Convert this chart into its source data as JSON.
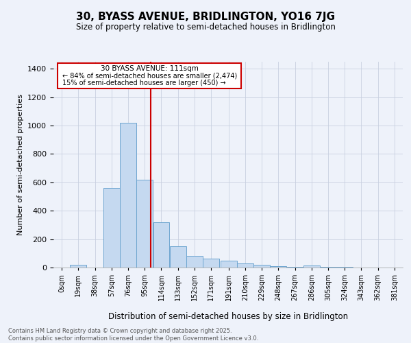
{
  "title": "30, BYASS AVENUE, BRIDLINGTON, YO16 7JG",
  "subtitle": "Size of property relative to semi-detached houses in Bridlington",
  "xlabel": "Distribution of semi-detached houses by size in Bridlington",
  "ylabel": "Number of semi-detached properties",
  "bin_labels": [
    "0sqm",
    "19sqm",
    "38sqm",
    "57sqm",
    "76sqm",
    "95sqm",
    "114sqm",
    "133sqm",
    "152sqm",
    "171sqm",
    "191sqm",
    "210sqm",
    "229sqm",
    "248sqm",
    "267sqm",
    "286sqm",
    "305sqm",
    "324sqm",
    "343sqm",
    "362sqm",
    "381sqm"
  ],
  "bin_left_edges": [
    0,
    19,
    38,
    57,
    76,
    95,
    114,
    133,
    152,
    171,
    191,
    210,
    229,
    248,
    267,
    286,
    305,
    324,
    343,
    362
  ],
  "bar_heights": [
    0,
    20,
    0,
    560,
    1020,
    620,
    320,
    150,
    80,
    65,
    50,
    30,
    20,
    8,
    5,
    15,
    5,
    5,
    2,
    1
  ],
  "bar_color": "#c5d9f0",
  "bar_edgecolor": "#6ea6d0",
  "property_size": 111,
  "redline_color": "#cc0000",
  "annotation_title": "30 BYASS AVENUE: 111sqm",
  "annotation_line1": "← 84% of semi-detached houses are smaller (2,474)",
  "annotation_line2": "15% of semi-detached houses are larger (450) →",
  "annotation_box_color": "#cc0000",
  "ylim": [
    0,
    1450
  ],
  "xlim": [
    0,
    400
  ],
  "background_color": "#eef2fa",
  "grid_color": "#c8d0e0",
  "footer_line1": "Contains HM Land Registry data © Crown copyright and database right 2025.",
  "footer_line2": "Contains public sector information licensed under the Open Government Licence v3.0."
}
